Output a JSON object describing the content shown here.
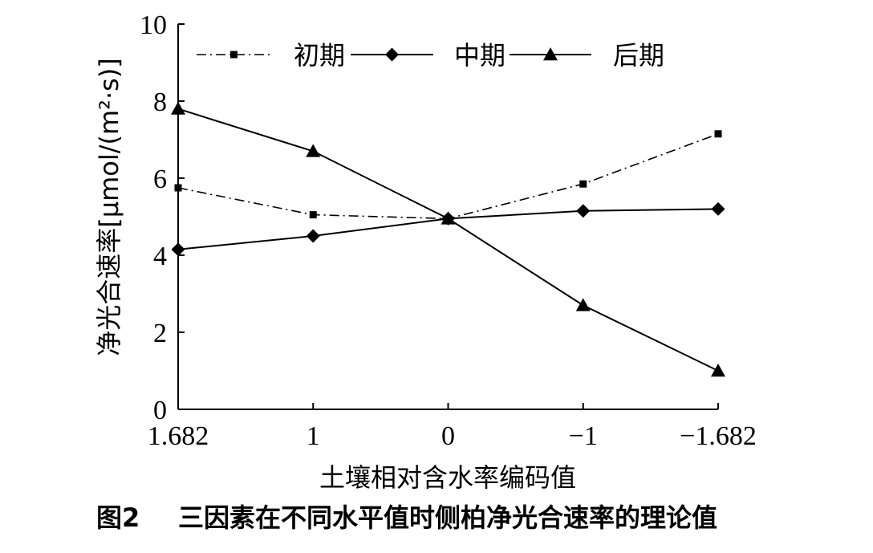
{
  "chart_data": {
    "type": "line",
    "categories": [
      "1.682",
      "1",
      "0",
      "−1",
      "−1.682"
    ],
    "series": [
      {
        "name": "初期",
        "values": [
          5.75,
          5.05,
          4.95,
          5.85,
          7.15
        ],
        "marker": "square",
        "line": "dash-dot"
      },
      {
        "name": "中期",
        "values": [
          4.15,
          4.5,
          4.95,
          5.15,
          5.2
        ],
        "marker": "diamond",
        "line": "solid"
      },
      {
        "name": "后期",
        "values": [
          7.8,
          6.7,
          4.95,
          2.7,
          1.0
        ],
        "marker": "triangle",
        "line": "solid"
      }
    ],
    "xlabel": "土壤相对含水率编码值",
    "ylabel": "净光合速率[μmol/(m²·s)]",
    "ylim": [
      0,
      10
    ],
    "yticks": [
      "0",
      "2",
      "4",
      "6",
      "8",
      "10"
    ],
    "grid": false,
    "legend_position": "top"
  },
  "caption": {
    "number": "图2",
    "text": "三因素在不同水平值时侧柏净光合速率的理论值"
  },
  "colors": {
    "line": "#000000",
    "background": "#ffffff"
  }
}
